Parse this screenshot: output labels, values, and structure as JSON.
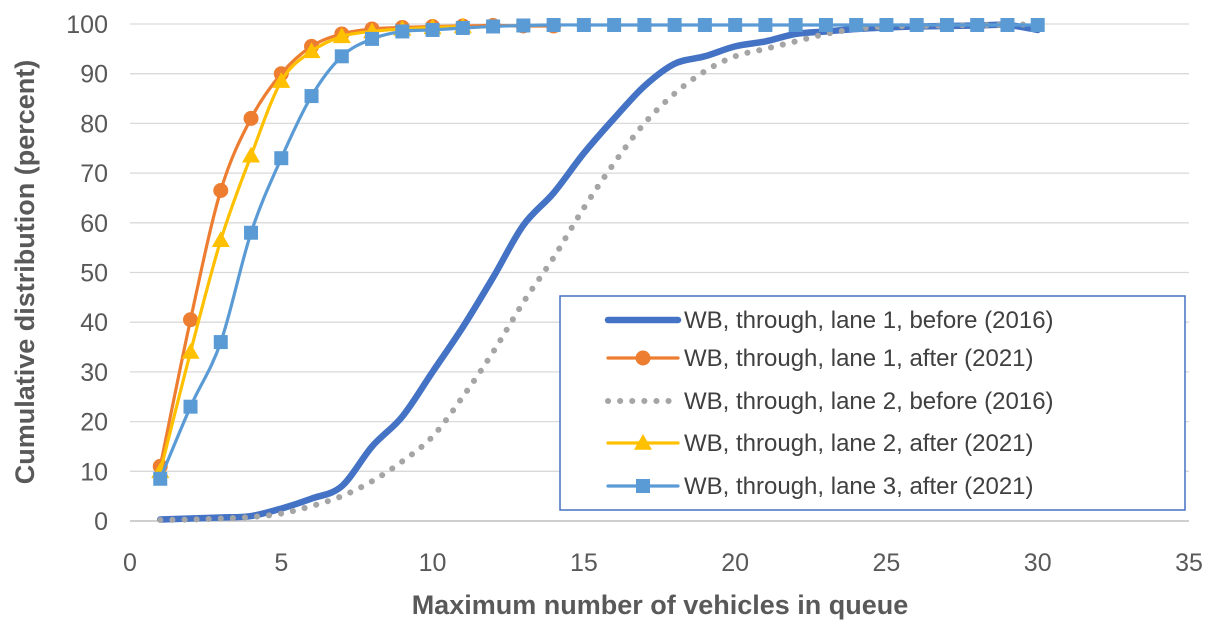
{
  "chart_data": {
    "type": "line",
    "xlabel": "Maximum number of vehicles in queue",
    "ylabel": "Cumulative distribution (percent)",
    "xlim": [
      0,
      35
    ],
    "ylim": [
      0,
      100
    ],
    "xticks": [
      0,
      5,
      10,
      15,
      20,
      25,
      30,
      35
    ],
    "yticks": [
      0,
      10,
      20,
      30,
      40,
      50,
      60,
      70,
      80,
      90,
      100
    ],
    "grid": "horizontal",
    "legend_position": "bottom-right",
    "series": [
      {
        "name": "WB, through, lane 1, before (2016)",
        "color": "#4472C4",
        "style": "solid-thick",
        "marker": "none",
        "x": [
          1,
          2,
          3,
          4,
          5,
          6,
          7,
          8,
          9,
          10,
          11,
          12,
          13,
          14,
          15,
          16,
          17,
          18,
          19,
          20,
          21,
          22,
          23,
          24,
          25,
          26,
          27,
          28,
          29,
          30
        ],
        "y": [
          0.3,
          0.5,
          0.7,
          1,
          2.5,
          4.5,
          7,
          15,
          21,
          30,
          39,
          49,
          59.5,
          66,
          74,
          81,
          87.5,
          92,
          93.5,
          95.5,
          96.5,
          98,
          98.5,
          99,
          99.3,
          99.5,
          99.6,
          99.7,
          99.8,
          98.8
        ]
      },
      {
        "name": "WB, through, lane 1, after (2021)",
        "color": "#ED7D31",
        "style": "solid",
        "marker": "circle",
        "x": [
          1,
          2,
          3,
          4,
          5,
          6,
          7,
          8,
          9,
          10,
          11,
          12,
          13,
          14
        ],
        "y": [
          11,
          40.5,
          66.5,
          81,
          90,
          95.5,
          98,
          99,
          99.3,
          99.5,
          99.6,
          99.7,
          99.6,
          99.6
        ]
      },
      {
        "name": "WB, through, lane 2, before (2016)",
        "color": "#A5A5A5",
        "style": "dotted",
        "marker": "none",
        "x": [
          1,
          2,
          3,
          4,
          5,
          6,
          7,
          8,
          9,
          10,
          11,
          12,
          13,
          14,
          15,
          16,
          17,
          18,
          19,
          20,
          21,
          22,
          23,
          24,
          25,
          26,
          27,
          28,
          29,
          30
        ],
        "y": [
          0.2,
          0.3,
          0.5,
          0.8,
          1.5,
          3,
          5,
          8,
          12,
          17,
          25,
          34,
          44,
          53,
          63,
          72,
          80,
          86,
          90.5,
          93.5,
          95,
          96.5,
          98,
          99,
          99.5,
          99.6,
          99.7,
          99.8,
          99.8,
          100
        ]
      },
      {
        "name": "WB, through, lane 2, after (2021)",
        "color": "#FFC000",
        "style": "solid",
        "marker": "triangle",
        "x": [
          1,
          2,
          3,
          4,
          5,
          6,
          7,
          8,
          9,
          10,
          11
        ],
        "y": [
          10,
          34,
          56.5,
          73.5,
          88.5,
          94.5,
          97.5,
          98.5,
          99,
          99.3,
          99.5
        ]
      },
      {
        "name": "WB, through, lane 3, after (2021)",
        "color": "#5B9BD5",
        "style": "solid",
        "marker": "square",
        "x": [
          1,
          2,
          3,
          4,
          5,
          6,
          7,
          8,
          9,
          10,
          11,
          12,
          13,
          14,
          15,
          16,
          17,
          18,
          19,
          20,
          21,
          22,
          23,
          24,
          25,
          26,
          27,
          28,
          29,
          30
        ],
        "y": [
          8.5,
          23,
          36,
          58,
          73,
          85.5,
          93.5,
          97,
          98.5,
          98.8,
          99.2,
          99.5,
          99.7,
          99.8,
          99.8,
          99.8,
          99.8,
          99.8,
          99.8,
          99.8,
          99.8,
          99.8,
          99.8,
          99.8,
          99.8,
          99.8,
          99.8,
          99.8,
          99.8,
          99.8
        ]
      }
    ]
  }
}
